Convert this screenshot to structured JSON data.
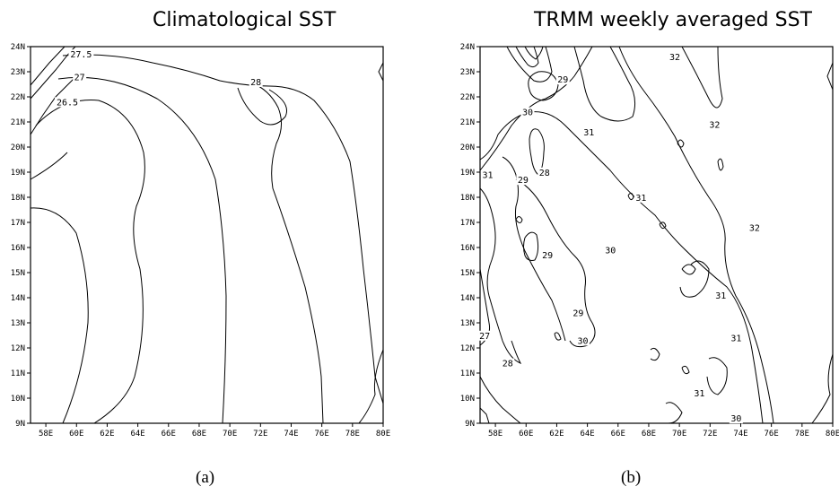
{
  "panels": [
    {
      "id": "a",
      "title": "Climatological SST",
      "caption": "(a)",
      "lon_ticks": [
        "58E",
        "60E",
        "62E",
        "64E",
        "66E",
        "68E",
        "70E",
        "72E",
        "74E",
        "76E",
        "78E",
        "80E"
      ],
      "lat_ticks": [
        "24N",
        "23N",
        "22N",
        "21N",
        "20N",
        "19N",
        "18N",
        "17N",
        "16N",
        "15N",
        "14N",
        "13N",
        "12N",
        "11N",
        "10N",
        "9N"
      ],
      "contour_labels": [
        {
          "text": "27.5",
          "lon": 60.3,
          "lat": 23.6
        },
        {
          "text": "27",
          "lon": 60.2,
          "lat": 22.7
        },
        {
          "text": "26.5",
          "lon": 59.4,
          "lat": 21.7
        },
        {
          "text": "28",
          "lon": 71.7,
          "lat": 22.5
        }
      ]
    },
    {
      "id": "b",
      "title": "TRMM weekly averaged SST",
      "caption": "(b)",
      "lon_ticks": [
        "58E",
        "60E",
        "62E",
        "64E",
        "66E",
        "68E",
        "70E",
        "72E",
        "74E",
        "76E",
        "78E",
        "80E"
      ],
      "lat_ticks": [
        "24N",
        "23N",
        "22N",
        "21N",
        "20N",
        "19N",
        "18N",
        "17N",
        "16N",
        "15N",
        "14N",
        "13N",
        "12N",
        "11N",
        "10N",
        "9N"
      ],
      "contour_labels": [
        {
          "text": "29",
          "lon": 62.4,
          "lat": 22.6
        },
        {
          "text": "30",
          "lon": 60.1,
          "lat": 21.3
        },
        {
          "text": "32",
          "lon": 69.7,
          "lat": 23.5
        },
        {
          "text": "31",
          "lon": 64.1,
          "lat": 20.5
        },
        {
          "text": "32",
          "lon": 72.3,
          "lat": 20.8
        },
        {
          "text": "31",
          "lon": 57.5,
          "lat": 18.8
        },
        {
          "text": "29",
          "lon": 59.8,
          "lat": 18.6
        },
        {
          "text": "28",
          "lon": 61.2,
          "lat": 18.9
        },
        {
          "text": "31",
          "lon": 67.5,
          "lat": 17.9
        },
        {
          "text": "32",
          "lon": 74.9,
          "lat": 16.7
        },
        {
          "text": "29",
          "lon": 61.4,
          "lat": 15.6
        },
        {
          "text": "30",
          "lon": 65.5,
          "lat": 15.8
        },
        {
          "text": "31",
          "lon": 72.7,
          "lat": 14.0
        },
        {
          "text": "29",
          "lon": 63.4,
          "lat": 13.3
        },
        {
          "text": "27",
          "lon": 57.3,
          "lat": 12.4
        },
        {
          "text": "30",
          "lon": 63.7,
          "lat": 12.2
        },
        {
          "text": "31",
          "lon": 73.7,
          "lat": 12.3
        },
        {
          "text": "28",
          "lon": 58.8,
          "lat": 11.3
        },
        {
          "text": "31",
          "lon": 71.3,
          "lat": 10.1
        },
        {
          "text": "30",
          "lon": 73.7,
          "lat": 9.1
        }
      ]
    }
  ]
}
